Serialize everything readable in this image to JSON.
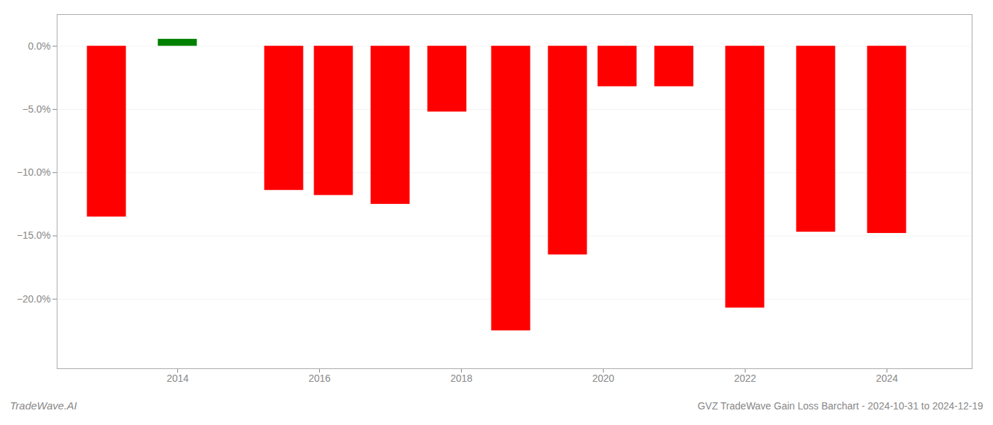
{
  "chart_data": {
    "type": "bar",
    "title": "GVZ TradeWave Gain Loss Barchart - 2024-10-31 to 2024-12-19",
    "annotations": [
      "TradeWave.AI"
    ],
    "x": [
      2013.0,
      2014.0,
      2015.5,
      2016.2,
      2017.0,
      2017.8,
      2018.7,
      2019.5,
      2020.2,
      2021.0,
      2022.0,
      2023.0,
      2024.0
    ],
    "values": [
      -13.5,
      0.55,
      -11.4,
      -11.8,
      -12.5,
      -5.2,
      -22.5,
      -16.5,
      -3.2,
      -3.2,
      -20.7,
      -14.7,
      -14.8
    ],
    "colors": [
      "#ff0000",
      "#008000",
      "#ff0000",
      "#ff0000",
      "#ff0000",
      "#ff0000",
      "#ff0000",
      "#ff0000",
      "#ff0000",
      "#ff0000",
      "#ff0000",
      "#ff0000",
      "#ff0000"
    ],
    "xlim": [
      2012.3,
      2025.2
    ],
    "xticks": [
      2014,
      2016,
      2018,
      2020,
      2022,
      2024
    ],
    "ylim": [
      -25.5,
      2.5
    ],
    "yticks": [
      {
        "value": 0.0,
        "label": "0.0%"
      },
      {
        "value": -5.0,
        "label": "−5.0%"
      },
      {
        "value": -10.0,
        "label": "−10.0%"
      },
      {
        "value": -15.0,
        "label": "−15.0%"
      },
      {
        "value": -20.0,
        "label": "−20.0%"
      }
    ],
    "grid": true
  }
}
